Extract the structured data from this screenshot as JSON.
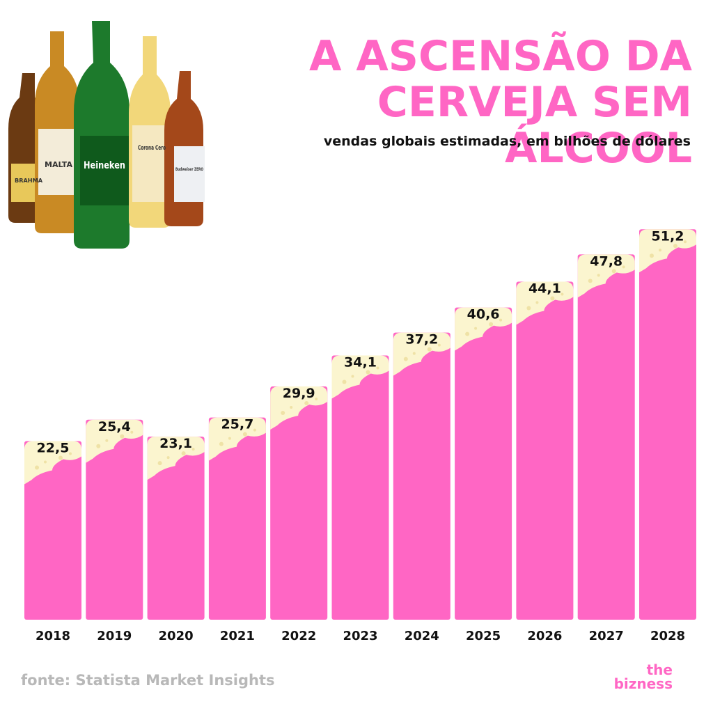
{
  "chart_data": {
    "type": "bar",
    "title": "A ASCENSÃO DA CERVEJA SEM ÁLCOOL",
    "subtitle": "vendas globais estimadas, em bilhões de dólares",
    "categories": [
      "2018",
      "2019",
      "2020",
      "2021",
      "2022",
      "2023",
      "2024",
      "2025",
      "2026",
      "2027",
      "2028"
    ],
    "values": [
      22.5,
      25.4,
      23.1,
      25.7,
      29.9,
      34.1,
      37.2,
      40.6,
      44.1,
      47.8,
      51.2
    ],
    "value_labels": [
      "22,5",
      "25,4",
      "23,1",
      "25,7",
      "29,9",
      "34,1",
      "37,2",
      "40,6",
      "44,1",
      "47,8",
      "51,2"
    ],
    "color": "#ff66c4",
    "foam_color": "#fbf5cf",
    "source": "fonte: Statista Market Insights"
  },
  "logo": {
    "top": "the",
    "bottom": "bizness"
  },
  "bottle_labels": [
    "BRAHMA",
    "MALTA",
    "Heineken",
    "Corona Cero",
    "Budweiser ZERO"
  ]
}
